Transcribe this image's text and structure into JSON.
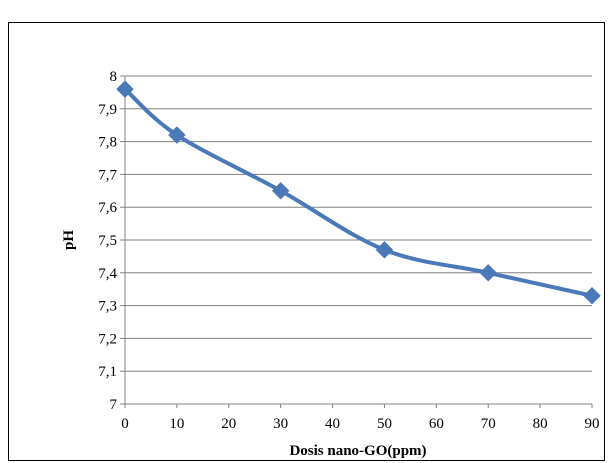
{
  "chart_data": {
    "type": "line",
    "x": [
      0,
      10,
      30,
      50,
      70,
      90
    ],
    "values": [
      7.96,
      7.82,
      7.65,
      7.47,
      7.4,
      7.33
    ],
    "x_ticks": [
      "0",
      "10",
      "20",
      "30",
      "40",
      "50",
      "60",
      "70",
      "80",
      "90"
    ],
    "y_ticks": [
      "7",
      "7,1",
      "7,2",
      "7,3",
      "7,4",
      "7,5",
      "7,6",
      "7,7",
      "7,8",
      "7,9",
      "8"
    ],
    "xlabel": "Dosis nano-GO(ppm)",
    "ylabel": "pH",
    "xlim": [
      0,
      90
    ],
    "ylim": [
      7,
      8
    ],
    "grid": "horizontal",
    "marker": "diamond",
    "line_smooth": true,
    "colors": {
      "series": "#4a78b8",
      "grid": "#808080",
      "axis": "#808080"
    }
  }
}
